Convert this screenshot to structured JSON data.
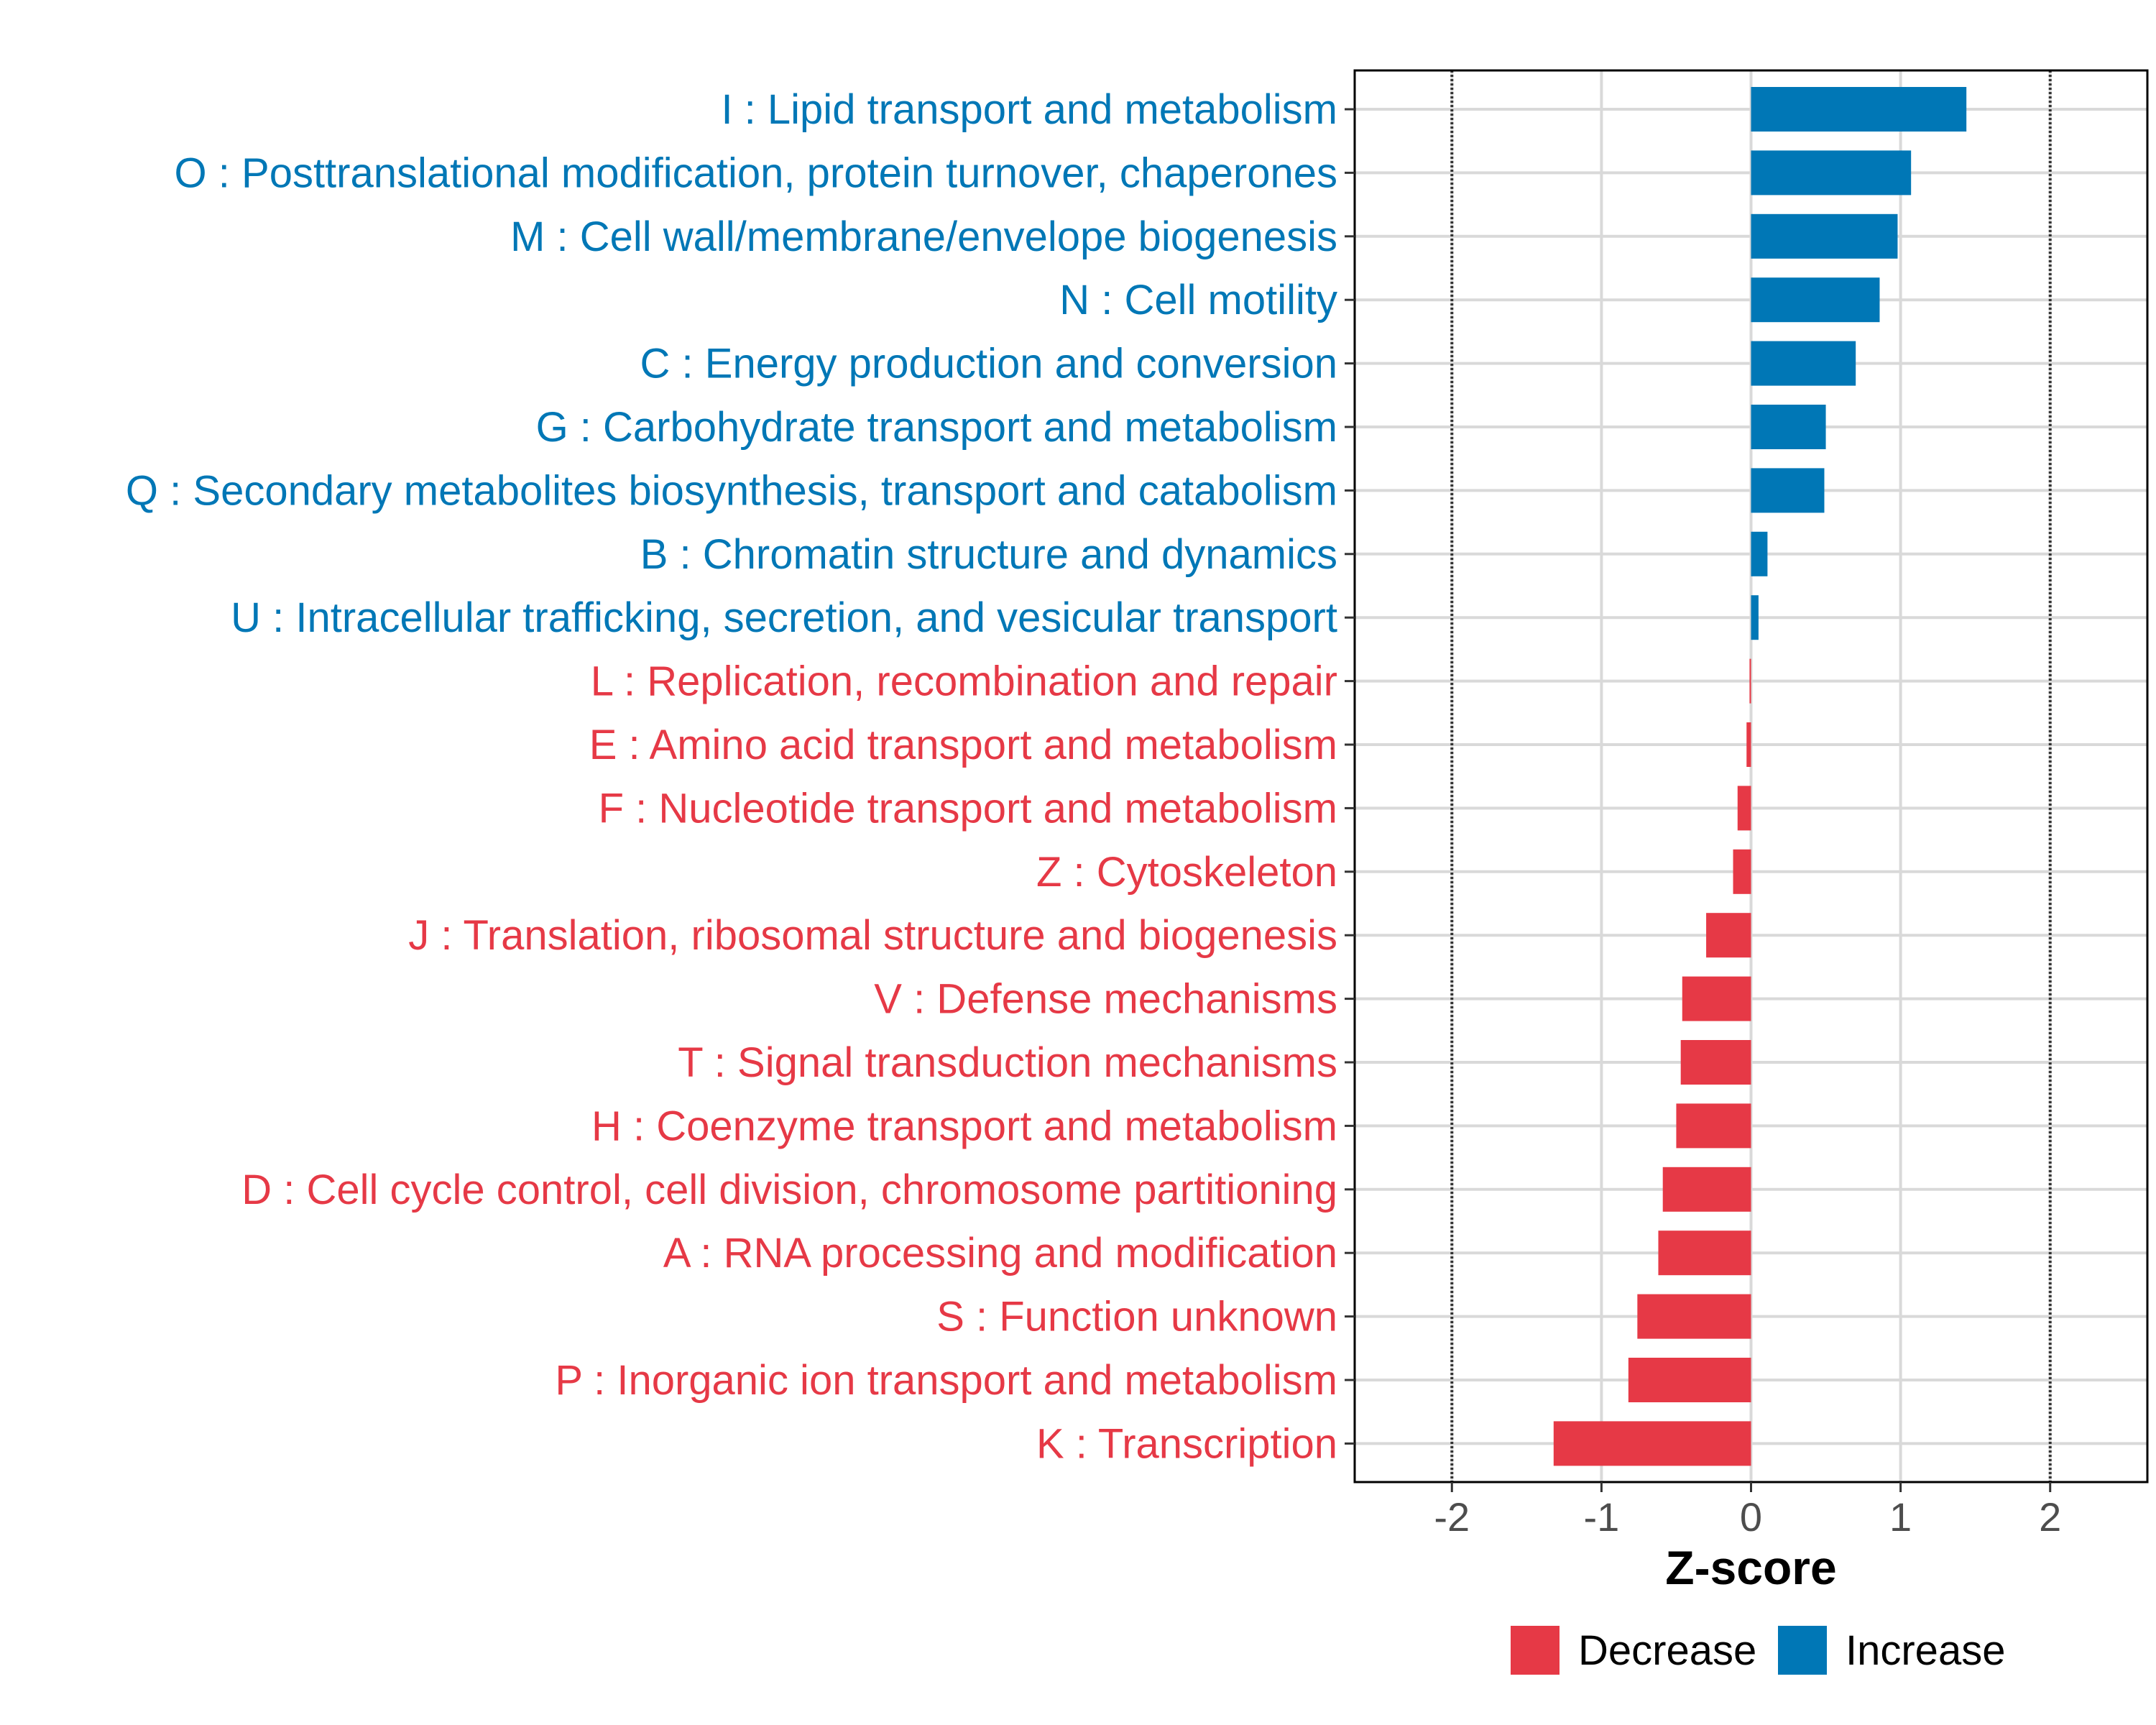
{
  "chart_data": {
    "type": "bar",
    "orientation": "horizontal",
    "title": "",
    "xlabel": "Z-score",
    "ylabel": "",
    "xlim": [
      -2.65,
      2.65
    ],
    "x_ticks": [
      -2,
      -1,
      0,
      1,
      2
    ],
    "x_tick_labels": [
      "-2",
      "-1",
      "0",
      "1",
      "2"
    ],
    "reference_lines": [
      -2,
      2
    ],
    "grid": true,
    "colors": {
      "Decrease": "#E63946",
      "Increase": "#0077B6"
    },
    "categories": [
      "I : Lipid transport and metabolism",
      "O : Posttranslational modification, protein turnover, chaperones",
      "M : Cell wall/membrane/envelope biogenesis",
      "N : Cell motility",
      "C : Energy production and conversion",
      "G : Carbohydrate transport and metabolism",
      "Q : Secondary metabolites biosynthesis, transport and catabolism",
      "B : Chromatin structure and dynamics",
      "U : Intracellular trafficking, secretion, and vesicular transport",
      "L : Replication, recombination and repair",
      "E : Amino acid transport and metabolism",
      "F : Nucleotide transport and metabolism",
      "Z : Cytoskeleton",
      "J : Translation, ribosomal structure and biogenesis",
      "V : Defense mechanisms",
      "T : Signal transduction mechanisms",
      "H : Coenzyme transport and metabolism",
      "D : Cell cycle control, cell division, chromosome partitioning",
      "A : RNA processing and modification",
      "S : Function unknown",
      "P : Inorganic ion transport and metabolism",
      "K : Transcription"
    ],
    "values": [
      1.44,
      1.07,
      0.98,
      0.86,
      0.7,
      0.5,
      0.49,
      0.11,
      0.05,
      -0.01,
      -0.03,
      -0.09,
      -0.12,
      -0.3,
      -0.46,
      -0.47,
      -0.5,
      -0.59,
      -0.62,
      -0.76,
      -0.82,
      -1.32
    ],
    "groups": [
      "Increase",
      "Increase",
      "Increase",
      "Increase",
      "Increase",
      "Increase",
      "Increase",
      "Increase",
      "Increase",
      "Decrease",
      "Decrease",
      "Decrease",
      "Decrease",
      "Decrease",
      "Decrease",
      "Decrease",
      "Decrease",
      "Decrease",
      "Decrease",
      "Decrease",
      "Decrease",
      "Decrease"
    ],
    "legend": {
      "placement": "bottom",
      "entries": [
        {
          "label": "Decrease",
          "color": "#E63946"
        },
        {
          "label": "Increase",
          "color": "#0077B6"
        }
      ]
    }
  }
}
